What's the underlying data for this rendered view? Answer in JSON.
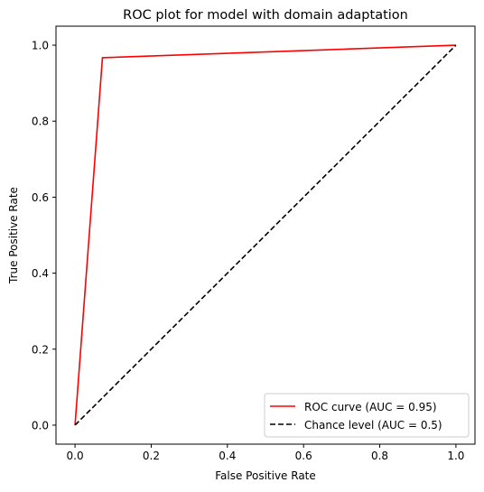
{
  "chart_data": {
    "type": "line",
    "title": "ROC plot for model with domain adaptation",
    "xlabel": "False Positive Rate",
    "ylabel": "True Positive Rate",
    "xlim": [
      -0.05,
      1.05
    ],
    "ylim": [
      -0.05,
      1.05
    ],
    "xticks": [
      0.0,
      0.2,
      0.4,
      0.6,
      0.8,
      1.0
    ],
    "yticks": [
      0.0,
      0.2,
      0.4,
      0.6,
      0.8,
      1.0
    ],
    "xtick_labels": [
      "0.0",
      "0.2",
      "0.4",
      "0.6",
      "0.8",
      "1.0"
    ],
    "ytick_labels": [
      "0.0",
      "0.2",
      "0.4",
      "0.6",
      "0.8",
      "1.0"
    ],
    "grid": false,
    "legend_position": "lower-right",
    "series": [
      {
        "name": "ROC curve (AUC = 0.95)",
        "color": "#ff0000",
        "linestyle": "solid",
        "x": [
          0.0,
          0.072,
          1.0
        ],
        "y": [
          0.0,
          0.967,
          1.0
        ]
      },
      {
        "name": "Chance level (AUC = 0.5)",
        "color": "#000000",
        "linestyle": "dashed",
        "x": [
          0.0,
          1.0
        ],
        "y": [
          0.0,
          1.0
        ]
      }
    ]
  }
}
